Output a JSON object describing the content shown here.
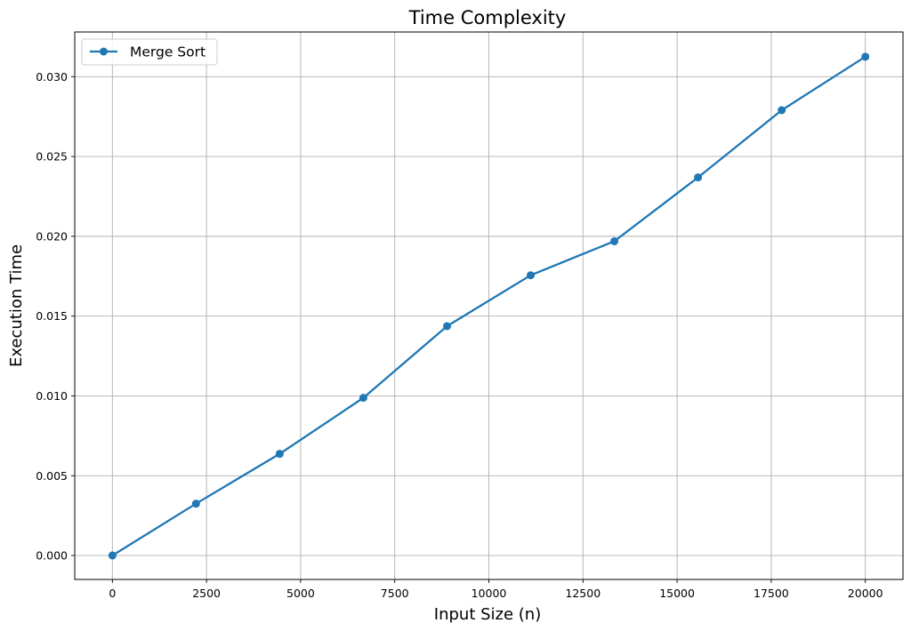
{
  "chart_data": {
    "type": "line",
    "title": "Time Complexity",
    "xlabel": "Input Size (n)",
    "ylabel": "Execution Time",
    "xlim": [
      -1000,
      21000
    ],
    "ylim": [
      -0.0015,
      0.0328
    ],
    "x_ticks": [
      0,
      2500,
      5000,
      7500,
      10000,
      12500,
      15000,
      17500,
      20000
    ],
    "x_tick_labels": [
      "0",
      "2500",
      "5000",
      "7500",
      "10000",
      "12500",
      "15000",
      "17500",
      "20000"
    ],
    "y_ticks": [
      0.0,
      0.005,
      0.01,
      0.015,
      0.02,
      0.025,
      0.03
    ],
    "y_tick_labels": [
      "0.000",
      "0.005",
      "0.010",
      "0.015",
      "0.020",
      "0.025",
      "0.030"
    ],
    "grid": true,
    "legend_position": "top-left",
    "series": [
      {
        "name": "Merge Sort",
        "color": "#1f77b4",
        "marker": "circle",
        "x": [
          0,
          2222,
          4444,
          6667,
          8889,
          11111,
          13333,
          15556,
          17778,
          20000
        ],
        "y": [
          0.0,
          0.00325,
          0.00637,
          0.00988,
          0.01437,
          0.01756,
          0.01969,
          0.02369,
          0.0279,
          0.03125
        ]
      }
    ]
  }
}
